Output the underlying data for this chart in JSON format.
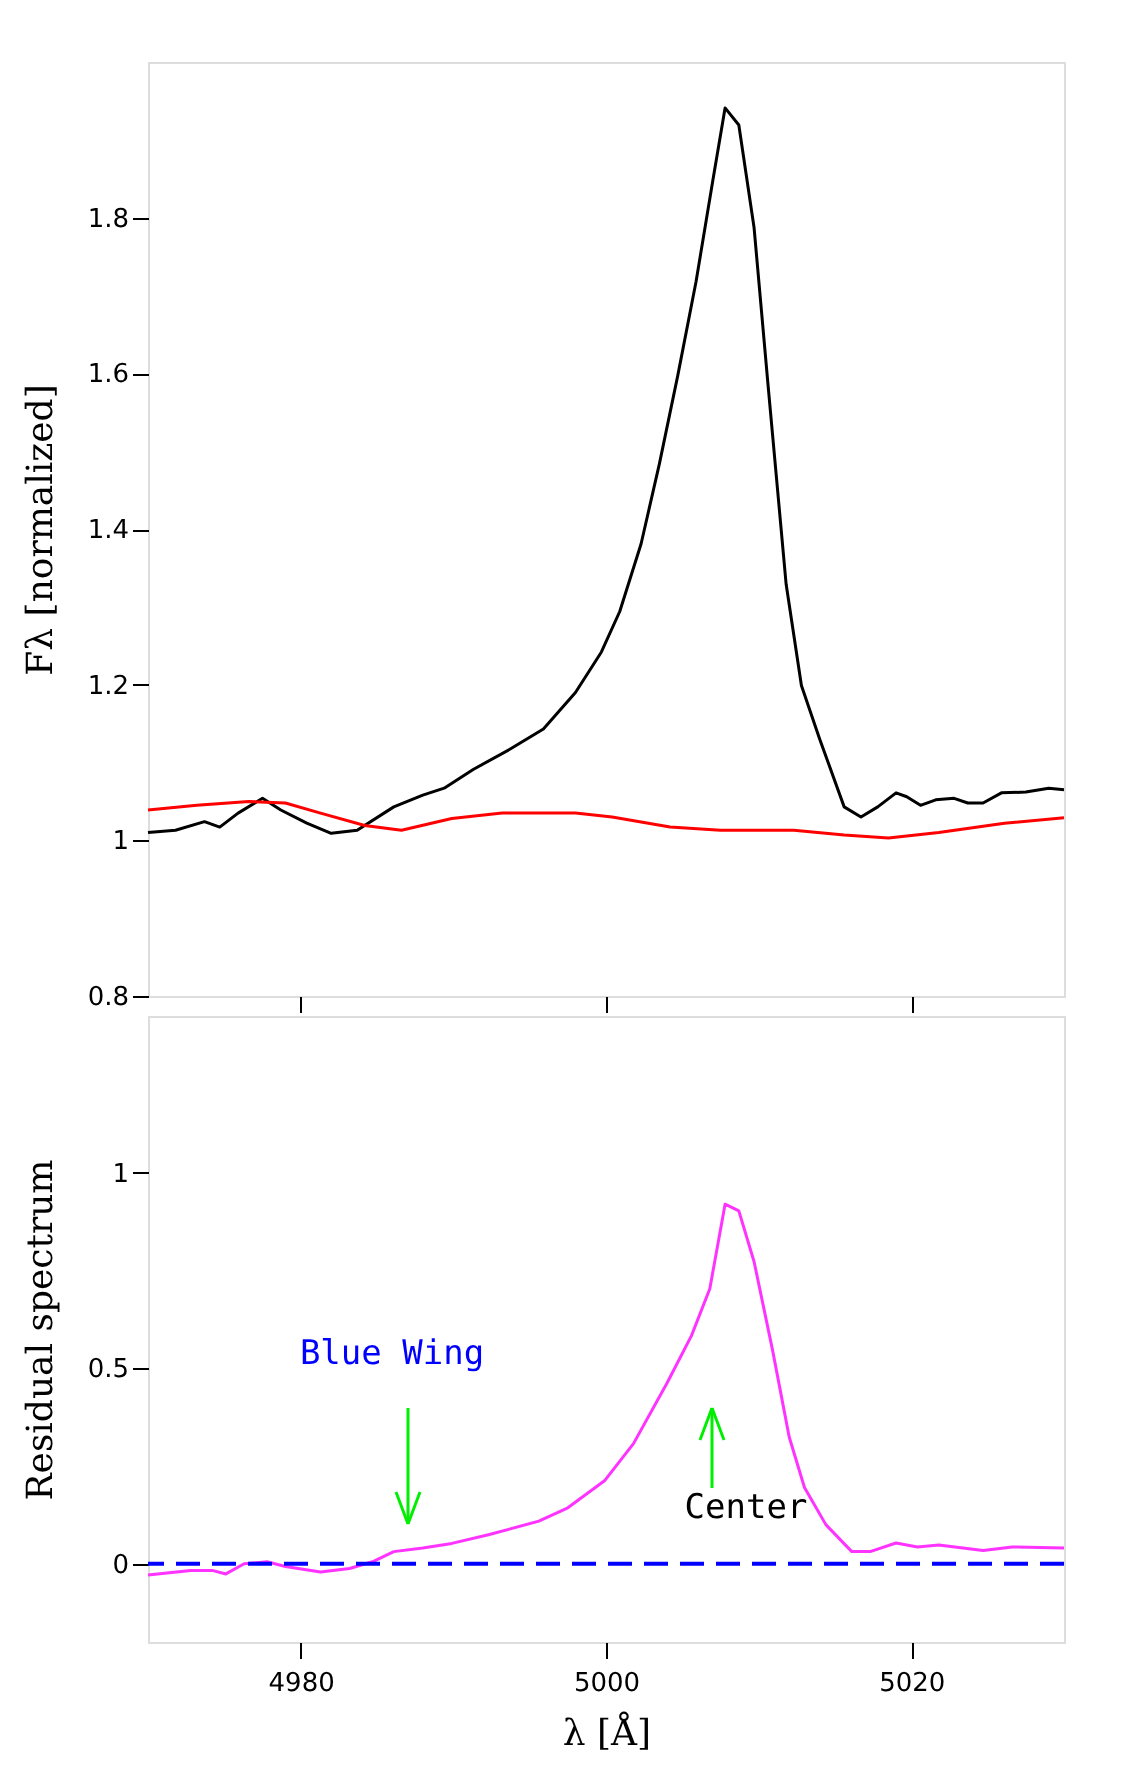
{
  "chart_data": [
    {
      "type": "line",
      "ylabel": "Fλ [normalized]",
      "xlim": [
        4970,
        5030
      ],
      "xticks": [
        4980,
        5000,
        5020
      ],
      "ylim": [
        0.8,
        2.0
      ],
      "yticks": [
        0.8,
        1,
        1.2,
        1.4,
        1.6,
        1.8
      ],
      "tick_labels": "y",
      "grid": false,
      "series": [
        {
          "color": "#000000",
          "x": [
            4970,
            4971.8,
            4973.7,
            4974.7,
            4975.9,
            4977.5,
            4978.7,
            4980.4,
            4982,
            4983.7,
            4986.1,
            4988,
            4989.4,
            4991.3,
            4993.7,
            4995.9,
            4998,
            4999.7,
            5000.9,
            5002.3,
            5003.5,
            5004.7,
            5005.9,
            5007,
            5007.8,
            5008.7,
            5009.7,
            5010.6,
            5011.8,
            5012.8,
            5014,
            5015.6,
            5016.7,
            5017.8,
            5019,
            5019.7,
            5020.6,
            5021.6,
            5022.8,
            5023.7,
            5024.7,
            5025.9,
            5027.5,
            5029,
            5030
          ],
          "values": [
            1.01,
            1.013,
            1.024,
            1.017,
            1.035,
            1.054,
            1.039,
            1.022,
            1.009,
            1.013,
            1.043,
            1.058,
            1.067,
            1.091,
            1.117,
            1.143,
            1.19,
            1.242,
            1.294,
            1.381,
            1.484,
            1.597,
            1.718,
            1.848,
            1.941,
            1.919,
            1.787,
            1.588,
            1.329,
            1.199,
            1.13,
            1.043,
            1.03,
            1.043,
            1.061,
            1.056,
            1.045,
            1.052,
            1.054,
            1.048,
            1.048,
            1.061,
            1.062,
            1.067,
            1.065
          ]
        },
        {
          "color": "#ff0000",
          "x": [
            4970,
            4973.2,
            4976.6,
            4979,
            4981.3,
            4984.2,
            4986.6,
            4989.9,
            4993.2,
            4998,
            5000.4,
            5004.2,
            5007.5,
            5012.3,
            5015.6,
            5018.5,
            5021.8,
            5026.1,
            5030
          ],
          "values": [
            1.039,
            1.045,
            1.05,
            1.048,
            1.035,
            1.019,
            1.013,
            1.028,
            1.035,
            1.035,
            1.03,
            1.017,
            1.013,
            1.013,
            1.007,
            1.003,
            1.01,
            1.022,
            1.029
          ]
        }
      ]
    },
    {
      "type": "line",
      "xlabel": "λ [Å]",
      "ylabel": "Residual spectrum",
      "xlim": [
        4970,
        5030
      ],
      "xticks": [
        4980,
        5000,
        5020
      ],
      "ylim": [
        -0.2,
        1.4
      ],
      "yticks": [
        0,
        0.5,
        1
      ],
      "grid": false,
      "series": [
        {
          "color": "#ff33ff",
          "x": [
            4970,
            4972.8,
            4974.2,
            4975.1,
            4976.3,
            4977.8,
            4979,
            4981.3,
            4983.2,
            4984.7,
            4986.1,
            4988,
            4989.9,
            4992.3,
            4995.6,
            4997.5,
            4999.9,
            5001.8,
            5004,
            5005.6,
            5006.8,
            5007.8,
            5008.7,
            5009.7,
            5010.9,
            5012,
            5013,
            5014.4,
            5016.1,
            5017.3,
            5019,
            5020.4,
            5021.8,
            5024.7,
            5026.6,
            5030
          ],
          "values": [
            -0.029,
            -0.017,
            -0.017,
            -0.026,
            0,
            0.005,
            -0.007,
            -0.021,
            -0.012,
            0.005,
            0.031,
            0.04,
            0.052,
            0.074,
            0.109,
            0.143,
            0.212,
            0.307,
            0.462,
            0.583,
            0.703,
            0.919,
            0.902,
            0.772,
            0.548,
            0.324,
            0.195,
            0.1,
            0.031,
            0.031,
            0.053,
            0.043,
            0.048,
            0.034,
            0.043,
            0.04
          ]
        }
      ],
      "ref_lines": [
        {
          "axis": "y",
          "value": 0,
          "color": "#0000ff",
          "line_style": "dashed"
        }
      ],
      "annotations": [
        "Blue Wing",
        "Center"
      ]
    }
  ]
}
